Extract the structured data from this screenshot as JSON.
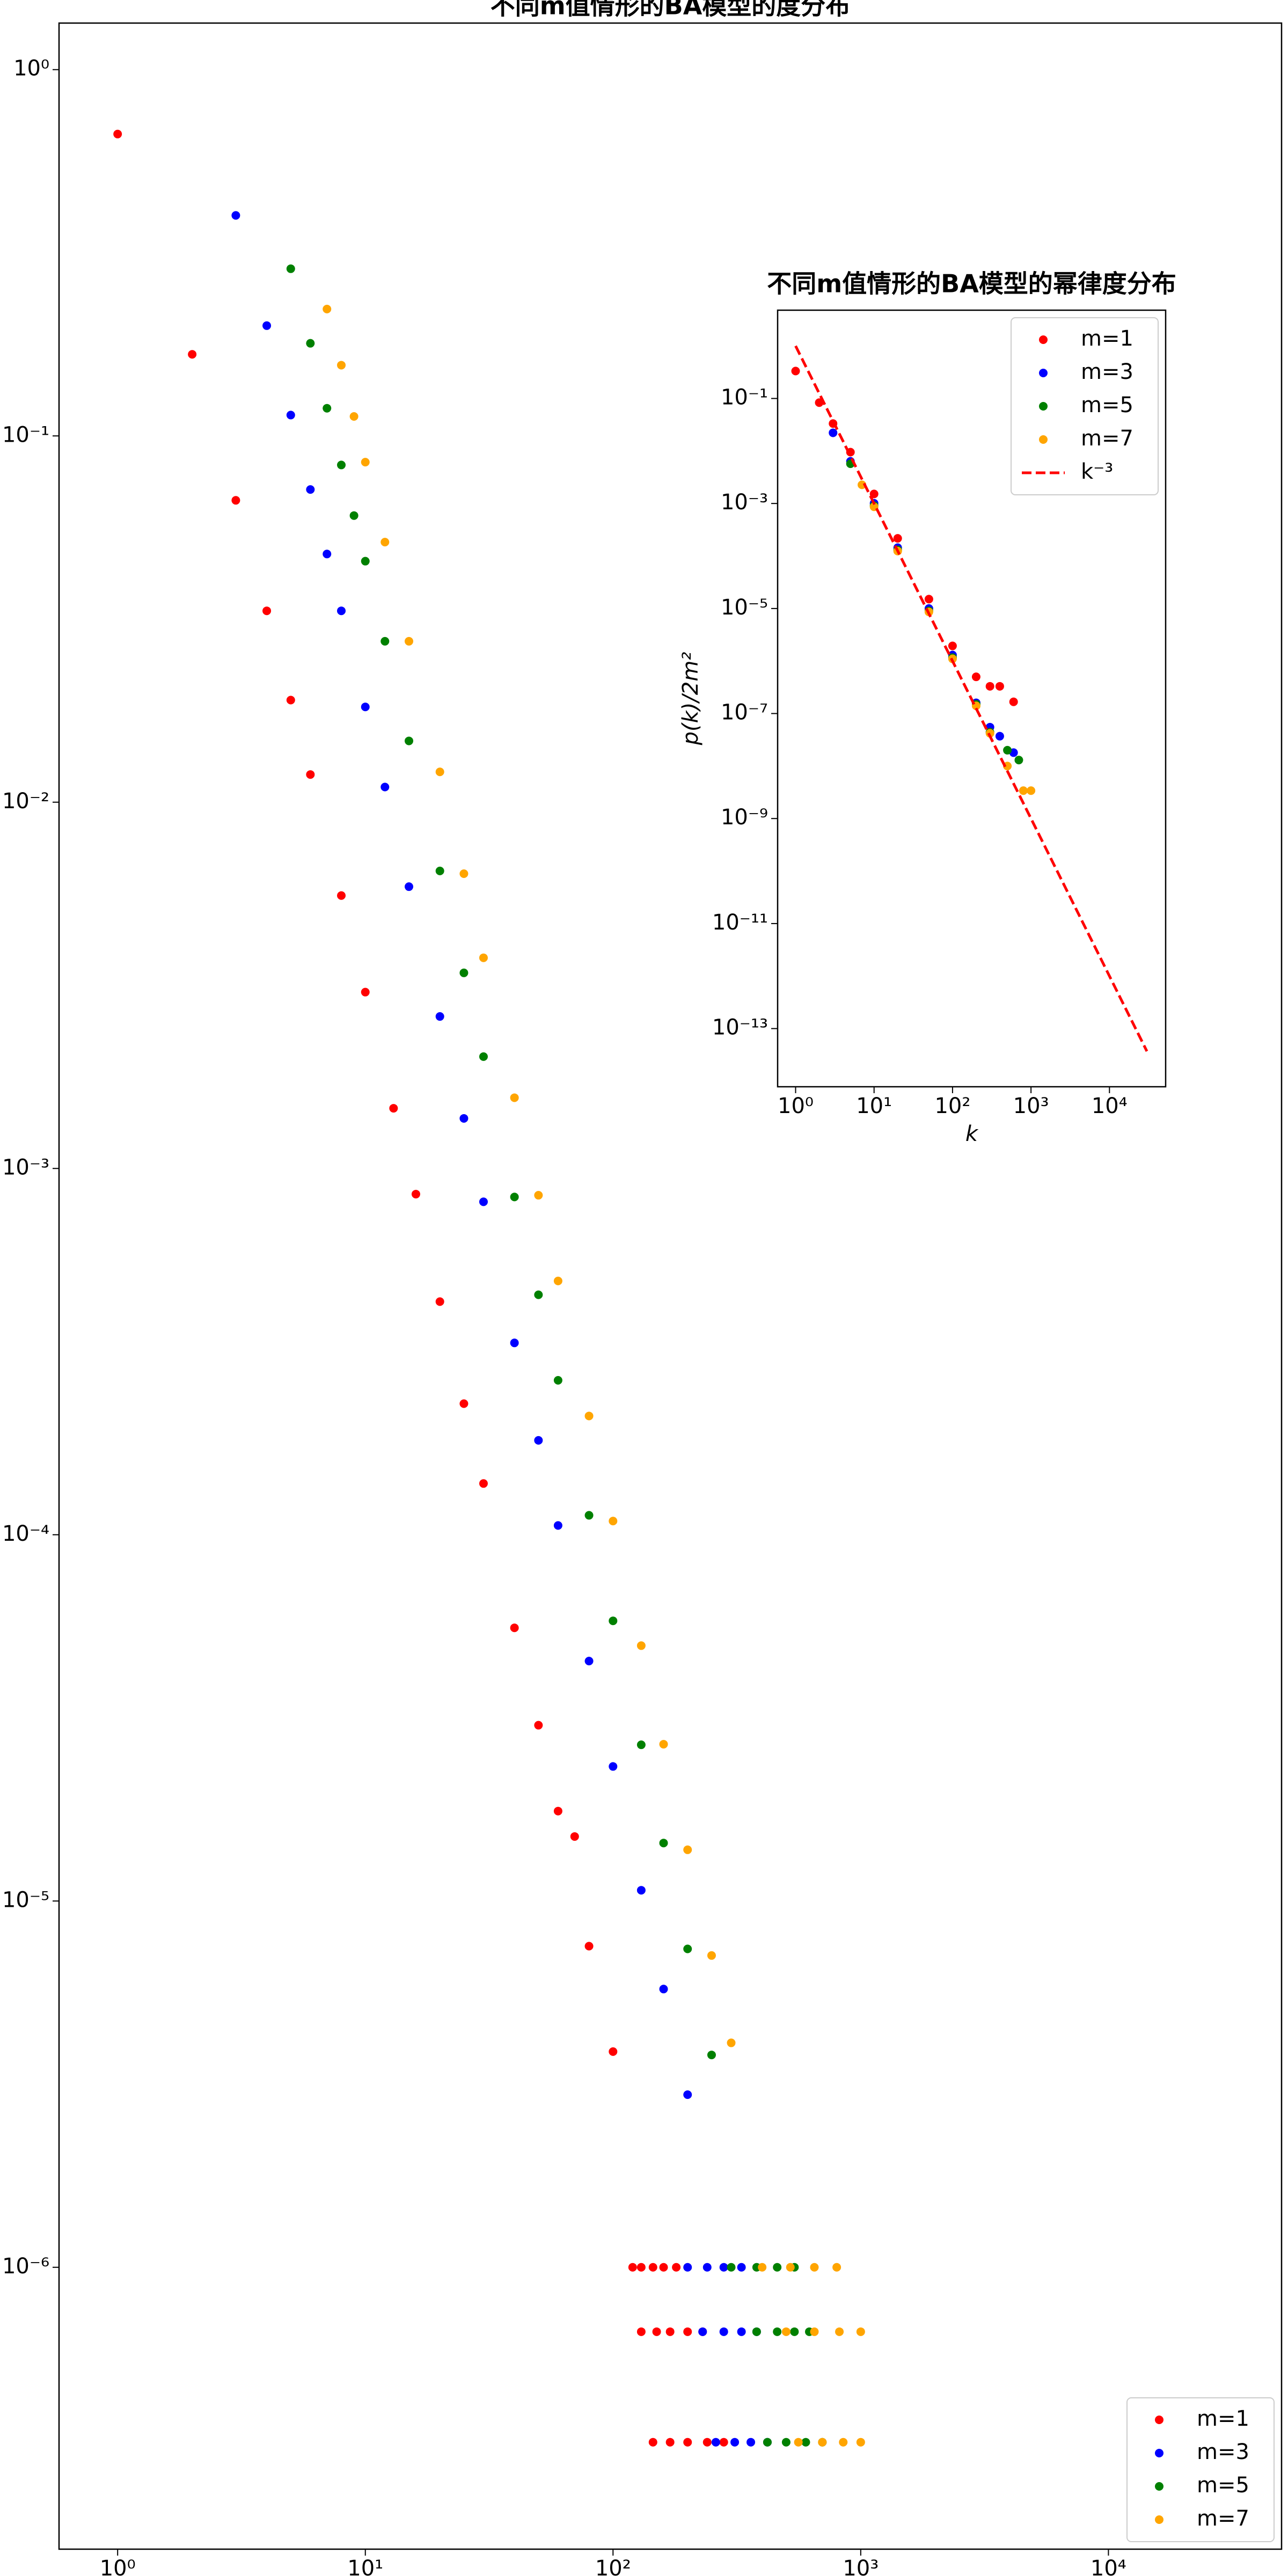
{
  "chart_data": [
    {
      "type": "scatter",
      "title": "不同m值情形的BA模型的度分布",
      "log_x": true,
      "log_y": true,
      "legend": "lower right",
      "xlim": [
        0.58,
        50000
      ],
      "ylim": [
        1.7e-07,
        1.34
      ],
      "xticks": [
        {
          "value": 1,
          "label": "10⁰"
        },
        {
          "value": 10,
          "label": "10¹"
        },
        {
          "value": 100,
          "label": "10²"
        },
        {
          "value": 1000,
          "label": "10³"
        },
        {
          "value": 10000,
          "label": "10⁴"
        }
      ],
      "yticks": [
        {
          "value": 1,
          "label": "10⁰"
        },
        {
          "value": 0.1,
          "label": "10⁻¹"
        },
        {
          "value": 0.01,
          "label": "10⁻²"
        },
        {
          "value": 0.001,
          "label": "10⁻³"
        },
        {
          "value": 0.0001,
          "label": "10⁻⁴"
        },
        {
          "value": 1e-05,
          "label": "10⁻⁵"
        },
        {
          "value": 1e-06,
          "label": "10⁻⁶"
        }
      ],
      "series": [
        {
          "name": "m=1",
          "color": "#ff0000",
          "x": [
            1,
            2,
            3,
            4,
            5,
            6,
            8,
            10,
            13,
            16,
            20,
            25,
            30,
            40,
            50,
            60,
            70,
            80,
            100,
            120,
            130,
            145,
            160,
            180,
            130,
            150,
            170,
            200,
            230,
            145,
            170,
            200,
            240,
            280
          ],
          "y": [
            0.667,
            0.167,
            0.0667,
            0.0333,
            0.019,
            0.0119,
            0.00556,
            0.00303,
            0.00146,
            0.000851,
            0.000433,
            0.000228,
            0.000138,
            5.57e-05,
            3.02e-05,
            1.76e-05,
            1.5e-05,
            7.53e-06,
            3.88e-06,
            1e-06,
            1e-06,
            1e-06,
            1e-06,
            1e-06,
            6.67e-07,
            6.67e-07,
            6.67e-07,
            6.67e-07,
            6.67e-07,
            3.33e-07,
            3.33e-07,
            3.33e-07,
            3.33e-07,
            3.33e-07
          ]
        },
        {
          "name": "m=3",
          "color": "#0000ff",
          "x": [
            3,
            4,
            5,
            6,
            7,
            8,
            10,
            12,
            15,
            20,
            25,
            30,
            40,
            50,
            60,
            80,
            100,
            130,
            160,
            200,
            200,
            240,
            280,
            330,
            230,
            280,
            330,
            380,
            260,
            310,
            360,
            420
          ],
          "y": [
            0.4,
            0.2,
            0.114,
            0.0714,
            0.0476,
            0.0333,
            0.0182,
            0.011,
            0.00588,
            0.0026,
            0.00137,
            0.000811,
            0.000334,
            0.000181,
            0.000106,
            4.52e-05,
            2.33e-05,
            1.07e-05,
            5.75e-06,
            2.96e-06,
            1e-06,
            1e-06,
            1e-06,
            1e-06,
            6.67e-07,
            6.67e-07,
            6.67e-07,
            6.67e-07,
            3.33e-07,
            3.33e-07,
            3.33e-07,
            3.33e-07
          ]
        },
        {
          "name": "m=5",
          "color": "#008000",
          "x": [
            5,
            6,
            7,
            8,
            9,
            10,
            12,
            15,
            20,
            25,
            30,
            40,
            50,
            60,
            80,
            100,
            130,
            160,
            200,
            250,
            300,
            380,
            460,
            540,
            380,
            460,
            540,
            620,
            420,
            500,
            600,
            700
          ],
          "y": [
            0.286,
            0.179,
            0.119,
            0.0833,
            0.0606,
            0.0455,
            0.0275,
            0.0147,
            0.00649,
            0.00342,
            0.00202,
            0.000836,
            0.000452,
            0.000264,
            0.000113,
            5.82e-05,
            2.67e-05,
            1.44e-05,
            7.4e-06,
            3.8e-06,
            1e-06,
            1e-06,
            1e-06,
            1e-06,
            6.67e-07,
            6.67e-07,
            6.67e-07,
            6.67e-07,
            3.33e-07,
            3.33e-07,
            3.33e-07,
            3.33e-07
          ]
        },
        {
          "name": "m=7",
          "color": "#ffa500",
          "x": [
            7,
            8,
            9,
            10,
            12,
            15,
            20,
            25,
            30,
            40,
            50,
            60,
            80,
            100,
            130,
            160,
            200,
            250,
            300,
            400,
            520,
            650,
            800,
            500,
            650,
            820,
            1000,
            560,
            700,
            850,
            1000
          ],
          "y": [
            0.222,
            0.156,
            0.113,
            0.0848,
            0.0513,
            0.0275,
            0.0121,
            0.00638,
            0.00376,
            0.00156,
            0.000845,
            0.000493,
            0.000211,
            0.000109,
            4.98e-05,
            2.68e-05,
            1.38e-05,
            7.1e-06,
            4.1e-06,
            1e-06,
            1e-06,
            1e-06,
            1e-06,
            6.67e-07,
            6.67e-07,
            6.67e-07,
            6.67e-07,
            3.33e-07,
            3.33e-07,
            3.33e-07,
            3.33e-07
          ]
        }
      ]
    },
    {
      "type": "scatter",
      "title": "不同m值情形的BA模型的幂律度分布",
      "log_x": true,
      "log_y": true,
      "legend": "upper right",
      "x_label": "k",
      "y_label": "p(k)/2m²",
      "xlim": [
        0.59,
        52000
      ],
      "ylim": [
        7.8e-15,
        4.8
      ],
      "xticks": [
        {
          "value": 1,
          "label": "10⁰"
        },
        {
          "value": 10,
          "label": "10¹"
        },
        {
          "value": 100,
          "label": "10²"
        },
        {
          "value": 1000,
          "label": "10³"
        },
        {
          "value": 10000,
          "label": "10⁴"
        }
      ],
      "yticks": [
        {
          "value": 0.1,
          "label": "10⁻¹"
        },
        {
          "value": 0.001,
          "label": "10⁻³"
        },
        {
          "value": 1e-05,
          "label": "10⁻⁵"
        },
        {
          "value": 1e-07,
          "label": "10⁻⁷"
        },
        {
          "value": 1e-09,
          "label": "10⁻⁹"
        },
        {
          "value": 1e-11,
          "label": "10⁻¹¹"
        },
        {
          "value": 1e-13,
          "label": "10⁻¹³"
        }
      ],
      "series": [
        {
          "name": "m=1",
          "color": "#ff0000",
          "x": [
            1,
            2,
            3,
            5,
            10,
            20,
            50,
            100,
            200,
            300,
            400,
            600
          ],
          "y": [
            0.333,
            0.0833,
            0.0333,
            0.0095,
            0.00152,
            0.000217,
            1.51e-05,
            1.94e-06,
            5e-07,
            3.3e-07,
            3.3e-07,
            1.67e-07
          ]
        },
        {
          "name": "m=3",
          "color": "#0000ff",
          "x": [
            3,
            5,
            10,
            20,
            50,
            100,
            200,
            300,
            400,
            600
          ],
          "y": [
            0.0222,
            0.00635,
            0.00101,
            0.000144,
            1e-05,
            1.3e-06,
            1.6e-07,
            5.5e-08,
            3.7e-08,
            1.8e-08
          ]
        },
        {
          "name": "m=5",
          "color": "#008000",
          "x": [
            5,
            10,
            20,
            50,
            100,
            200,
            300,
            500,
            700
          ],
          "y": [
            0.00571,
            0.00091,
            0.00013,
            9e-06,
            1.16e-06,
            1.5e-07,
            4.4e-08,
            2e-08,
            1.3e-08
          ]
        },
        {
          "name": "m=7",
          "color": "#ffa500",
          "x": [
            7,
            10,
            20,
            50,
            100,
            200,
            300,
            500,
            800,
            1000
          ],
          "y": [
            0.00227,
            0.000866,
            0.000124,
            8.6e-06,
            1.1e-06,
            1.4e-07,
            4.2e-08,
            1e-08,
            3.4e-09,
            3.4e-09
          ]
        },
        {
          "name": "k⁻³",
          "color": "#ff0000",
          "linestyle": "dashed",
          "x": [
            1,
            30000
          ],
          "y": [
            1,
            3.7e-14
          ]
        }
      ]
    }
  ]
}
